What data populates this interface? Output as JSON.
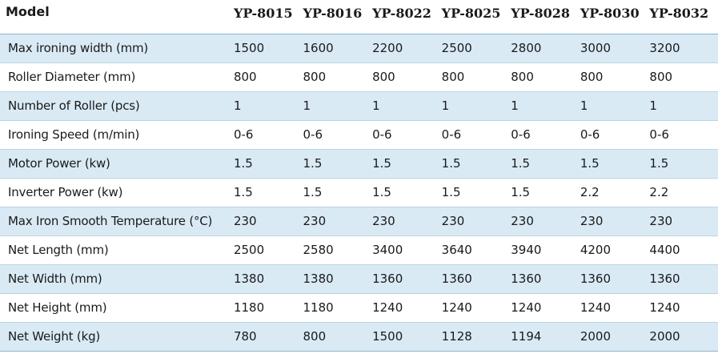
{
  "table": {
    "corner_label": "Model",
    "models": [
      "YP-8015",
      "YP-8016",
      "YP-8022",
      "YP-8025",
      "YP-8028",
      "YP-8030",
      "YP-8032"
    ],
    "rows": [
      {
        "label": "Max ironing width (mm)",
        "values": [
          "1500",
          "1600",
          "2200",
          "2500",
          "2800",
          "3000",
          "3200"
        ]
      },
      {
        "label": "Roller Diameter (mm)",
        "values": [
          "800",
          "800",
          "800",
          "800",
          "800",
          "800",
          "800"
        ]
      },
      {
        "label": "Number of Roller (pcs)",
        "values": [
          "1",
          "1",
          "1",
          "1",
          "1",
          "1",
          "1"
        ]
      },
      {
        "label": "Ironing Speed (m/min)",
        "values": [
          "0-6",
          "0-6",
          "0-6",
          "0-6",
          "0-6",
          "0-6",
          "0-6"
        ]
      },
      {
        "label": "Motor Power (kw)",
        "values": [
          "1.5",
          "1.5",
          "1.5",
          "1.5",
          "1.5",
          "1.5",
          "1.5"
        ]
      },
      {
        "label": "Inverter Power (kw)",
        "values": [
          "1.5",
          "1.5",
          "1.5",
          "1.5",
          "1.5",
          "2.2",
          "2.2"
        ]
      },
      {
        "label": "Max Iron Smooth Temperature  (°C)",
        "values": [
          "230",
          "230",
          "230",
          "230",
          "230",
          "230",
          "230"
        ]
      },
      {
        "label": "Net Length (mm)",
        "values": [
          "2500",
          "2580",
          "3400",
          "3640",
          "3940",
          "4200",
          "4400"
        ]
      },
      {
        "label": "Net Width (mm)",
        "values": [
          "1380",
          "1380",
          "1360",
          "1360",
          "1360",
          "1360",
          "1360"
        ]
      },
      {
        "label": "Net Height (mm)",
        "values": [
          "1180",
          "1180",
          "1240",
          "1240",
          "1240",
          "1240",
          "1240"
        ]
      },
      {
        "label": "Net Weight (kg)",
        "values": [
          "780",
          "800",
          "1500",
          "1128",
          "1194",
          "2000",
          "2000"
        ]
      }
    ]
  },
  "colors": {
    "stripe": "#d9eaf5",
    "border": "#b9d3e2"
  }
}
